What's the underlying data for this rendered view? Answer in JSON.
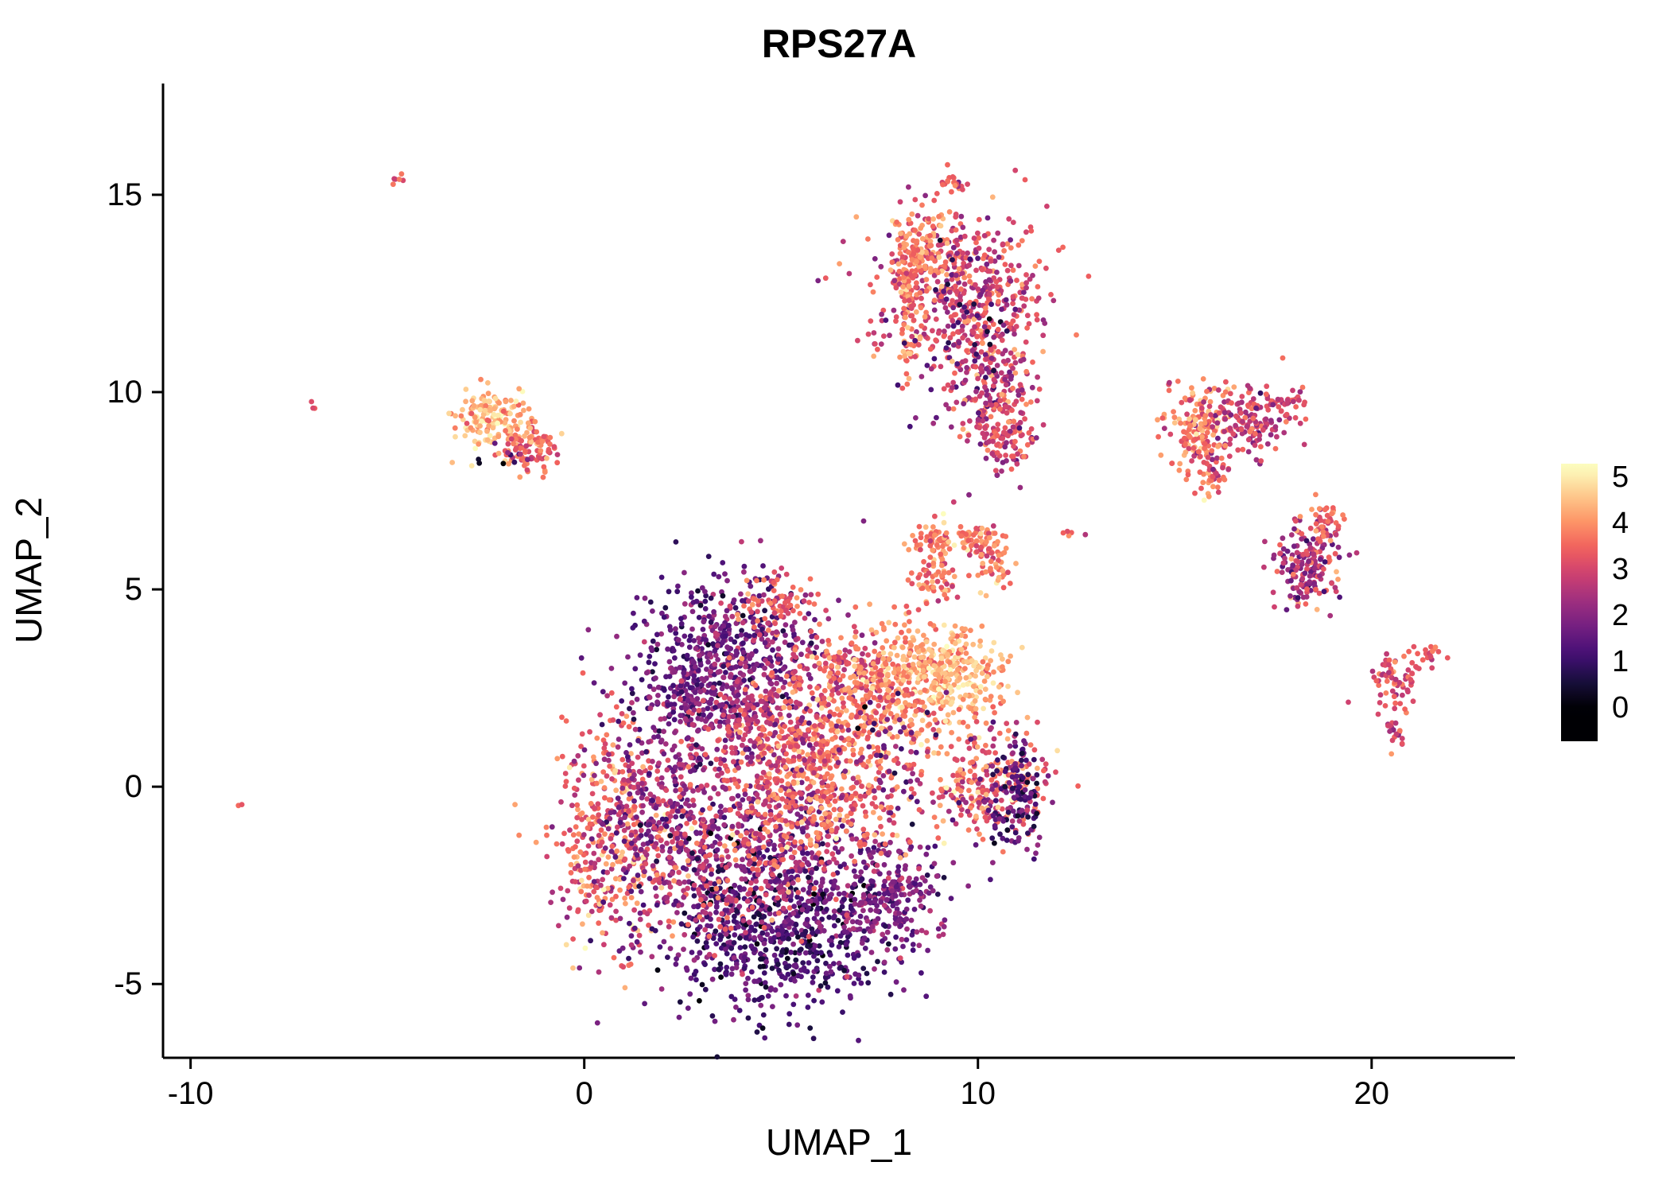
{
  "chart_data": {
    "type": "scatter",
    "title": "RPS27A",
    "xlabel": "UMAP_1",
    "ylabel": "UMAP_2",
    "xlim": [
      -10.7,
      23.64
    ],
    "ylim": [
      -6.87,
      17.82
    ],
    "x_ticks": [
      -10,
      0,
      10,
      20
    ],
    "y_ticks": [
      15,
      10,
      5,
      0,
      -5
    ],
    "grid": false,
    "legend": {
      "position": "right",
      "ticks": [
        5,
        4,
        3,
        2,
        1,
        0
      ],
      "vmin": 0,
      "vmax": 5,
      "colormap": "magma"
    },
    "point_radius": 3.4,
    "seed": 42,
    "value_max_for_color": 5.2,
    "colors": {
      "background": "#ffffff",
      "axis": "#000000",
      "text": "#000000",
      "colormap_stops": [
        "#000004",
        "#180f3d",
        "#440f76",
        "#721f81",
        "#9e2f7f",
        "#cd4071",
        "#f1605d",
        "#fd9567",
        "#feca8d",
        "#fcfdbf"
      ]
    },
    "clusters": [
      {
        "name": "main-left-orange",
        "n": 420,
        "cx": 0.7,
        "cy": -1.3,
        "sx": 0.75,
        "sy": 1.5,
        "v": 3.4,
        "sd": 0.8
      },
      {
        "name": "main-left-purple",
        "n": 500,
        "cx": 2.3,
        "cy": -0.6,
        "sx": 1.05,
        "sy": 1.5,
        "v": 2.1,
        "sd": 0.7
      },
      {
        "name": "main-mid-purple",
        "n": 300,
        "cx": 5.2,
        "cy": -1.4,
        "sx": 1.0,
        "sy": 0.8,
        "v": 2.2,
        "sd": 0.6
      },
      {
        "name": "main-top-dark",
        "n": 450,
        "cx": 3.6,
        "cy": 3.5,
        "sx": 1.15,
        "sy": 0.95,
        "v": 1.6,
        "sd": 0.55
      },
      {
        "name": "main-top-dark-2",
        "n": 150,
        "cx": 2.9,
        "cy": 2.3,
        "sx": 0.7,
        "sy": 0.6,
        "v": 1.8,
        "sd": 0.5
      },
      {
        "name": "main-top-fringe",
        "n": 80,
        "cx": 4.9,
        "cy": 4.7,
        "sx": 0.55,
        "sy": 0.35,
        "v": 3.4,
        "sd": 0.5
      },
      {
        "name": "main-bottom-dark",
        "n": 750,
        "cx": 5.0,
        "cy": -3.7,
        "sx": 1.5,
        "sy": 1.05,
        "v": 1.3,
        "sd": 0.55
      },
      {
        "name": "main-bottom-sprinkle",
        "n": 140,
        "cx": 4.0,
        "cy": -2.5,
        "sx": 1.3,
        "sy": 0.8,
        "v": 3.1,
        "sd": 0.5
      },
      {
        "name": "main-bottomright-purple",
        "n": 220,
        "cx": 7.8,
        "cy": -2.7,
        "sx": 0.7,
        "sy": 0.7,
        "v": 1.9,
        "sd": 0.5
      },
      {
        "name": "main-center-orange",
        "n": 600,
        "cx": 5.9,
        "cy": 0.4,
        "sx": 1.35,
        "sy": 1.15,
        "v": 3.6,
        "sd": 0.55
      },
      {
        "name": "main-mid-magenta",
        "n": 300,
        "cx": 4.6,
        "cy": 1.6,
        "sx": 0.95,
        "sy": 0.95,
        "v": 2.7,
        "sd": 0.6
      },
      {
        "name": "main-topright-mix",
        "n": 150,
        "cx": 6.8,
        "cy": 2.9,
        "sx": 0.6,
        "sy": 0.5,
        "v": 3.2,
        "sd": 0.7
      },
      {
        "name": "arm-orange",
        "n": 330,
        "cx": 8.0,
        "cy": 2.5,
        "sx": 0.95,
        "sy": 0.85,
        "v": 3.9,
        "sd": 0.5
      },
      {
        "name": "arm-pale",
        "n": 240,
        "cx": 9.3,
        "cy": 2.9,
        "sx": 0.75,
        "sy": 0.65,
        "v": 4.4,
        "sd": 0.4,
        "vmin": 3.2
      },
      {
        "name": "ring-a",
        "n": 60,
        "cx": 9.0,
        "cy": 6.2,
        "sx": 0.3,
        "sy": 0.35,
        "v": 3.8,
        "sd": 0.5
      },
      {
        "name": "ring-b",
        "n": 55,
        "cx": 9.9,
        "cy": 6.3,
        "sx": 0.35,
        "sy": 0.25,
        "v": 3.9,
        "sd": 0.5
      },
      {
        "name": "ring-c",
        "n": 55,
        "cx": 10.4,
        "cy": 5.7,
        "sx": 0.25,
        "sy": 0.35,
        "v": 3.7,
        "sd": 0.5
      },
      {
        "name": "ring-d",
        "n": 55,
        "cx": 8.9,
        "cy": 5.2,
        "sx": 0.3,
        "sy": 0.3,
        "v": 3.8,
        "sd": 0.5
      },
      {
        "name": "right-blob",
        "n": 260,
        "cx": 10.3,
        "cy": 0.0,
        "sx": 0.75,
        "sy": 0.65,
        "v": 3.3,
        "sd": 0.8
      },
      {
        "name": "right-blob-dark",
        "n": 120,
        "cx": 10.9,
        "cy": -0.4,
        "sx": 0.35,
        "sy": 0.7,
        "v": 1.3,
        "sd": 0.5
      },
      {
        "name": "center-dark-sprinkle",
        "n": 60,
        "cx": 7.8,
        "cy": 0.8,
        "sx": 0.8,
        "sy": 0.9,
        "v": 1.6,
        "sd": 0.6
      },
      {
        "name": "top-cluster-main",
        "n": 450,
        "cx": 9.6,
        "cy": 12.7,
        "sx": 1.05,
        "sy": 0.95,
        "v": 3.0,
        "sd": 0.6
      },
      {
        "name": "top-cluster-orange",
        "n": 120,
        "cx": 8.45,
        "cy": 13.5,
        "sx": 0.4,
        "sy": 0.45,
        "v": 3.9,
        "sd": 0.4
      },
      {
        "name": "top-cluster-edge",
        "n": 90,
        "cx": 8.25,
        "cy": 12.1,
        "sx": 0.16,
        "sy": 0.85,
        "v": 3.7,
        "sd": 0.5
      },
      {
        "name": "top-cluster-tail",
        "n": 240,
        "cx": 10.4,
        "cy": 10.3,
        "sx": 0.6,
        "sy": 1.0,
        "v": 2.8,
        "sd": 0.7
      },
      {
        "name": "top-cluster-tip",
        "n": 80,
        "cx": 10.6,
        "cy": 8.9,
        "sx": 0.35,
        "sy": 0.45,
        "v": 3.1,
        "sd": 0.6
      },
      {
        "name": "top-cluster-dark-sprinkle",
        "n": 60,
        "cx": 9.7,
        "cy": 11.7,
        "sx": 1.0,
        "sy": 1.2,
        "v": 1.2,
        "sd": 0.6
      },
      {
        "name": "top-tiny",
        "n": 20,
        "cx": 9.35,
        "cy": 15.35,
        "sx": 0.24,
        "sy": 0.07,
        "rot": -35,
        "v": 3.4,
        "sd": 0.6
      },
      {
        "name": "left-pale",
        "n": 150,
        "cx": -2.3,
        "cy": 9.3,
        "sx": 0.5,
        "sy": 0.38,
        "v": 4.4,
        "sd": 0.45,
        "vmin": 3.0
      },
      {
        "name": "left-orange",
        "n": 90,
        "cx": -1.3,
        "cy": 8.6,
        "sx": 0.38,
        "sy": 0.35,
        "v": 3.6,
        "sd": 0.5
      },
      {
        "name": "left-dark-dots",
        "n": 10,
        "cx": -2.1,
        "cy": 8.4,
        "sx": 0.3,
        "sy": 0.15,
        "v": 1.3,
        "sd": 0.8
      },
      {
        "name": "sat1-left",
        "n": 140,
        "cx": 15.6,
        "cy": 9.2,
        "sx": 0.45,
        "sy": 0.5,
        "v": 3.8,
        "sd": 0.5
      },
      {
        "name": "sat1-right",
        "n": 150,
        "cx": 16.8,
        "cy": 9.3,
        "sx": 0.6,
        "sy": 0.45,
        "v": 2.9,
        "sd": 0.6
      },
      {
        "name": "sat1-tail",
        "n": 55,
        "cx": 15.9,
        "cy": 8.1,
        "sx": 0.28,
        "sy": 0.4,
        "v": 3.4,
        "sd": 0.6
      },
      {
        "name": "sat1-tip",
        "n": 30,
        "cx": 17.9,
        "cy": 9.8,
        "sx": 0.25,
        "sy": 0.2,
        "v": 3.1,
        "sd": 0.5
      },
      {
        "name": "sat2",
        "n": 180,
        "cx": 18.35,
        "cy": 5.6,
        "sx": 0.4,
        "sy": 0.6,
        "v": 2.6,
        "sd": 0.7
      },
      {
        "name": "sat2-tip",
        "n": 35,
        "cx": 18.9,
        "cy": 6.7,
        "sx": 0.18,
        "sy": 0.28,
        "v": 3.6,
        "sd": 0.4
      },
      {
        "name": "sat3",
        "n": 60,
        "cx": 20.55,
        "cy": 2.6,
        "sx": 0.3,
        "sy": 0.4,
        "v": 3.1,
        "sd": 0.5
      },
      {
        "name": "sat3-arm",
        "n": 25,
        "cx": 21.3,
        "cy": 3.3,
        "sx": 0.25,
        "sy": 0.18,
        "rot": 30,
        "v": 3.3,
        "sd": 0.4
      },
      {
        "name": "sat3-tail",
        "n": 18,
        "cx": 20.6,
        "cy": 1.35,
        "sx": 0.13,
        "sy": 0.25,
        "v": 2.9,
        "sd": 0.5
      },
      {
        "name": "dot-topleft",
        "n": 6,
        "cx": -4.75,
        "cy": 15.4,
        "sx": 0.16,
        "sy": 0.06,
        "rot": 15,
        "v": 3.6,
        "sd": 0.3
      },
      {
        "name": "dot-left",
        "n": 3,
        "cx": -6.85,
        "cy": 9.65,
        "sx": 0.08,
        "sy": 0.1,
        "v": 3.0,
        "sd": 0.3
      },
      {
        "name": "dot-bottomleft",
        "n": 2,
        "cx": -8.75,
        "cy": -0.45,
        "sx": 0.05,
        "sy": 0.05,
        "v": 3.3,
        "sd": 0.2
      },
      {
        "name": "dot-midright",
        "n": 5,
        "cx": 12.35,
        "cy": 6.5,
        "sx": 0.2,
        "sy": 0.1,
        "v": 3.4,
        "sd": 0.4
      }
    ]
  }
}
